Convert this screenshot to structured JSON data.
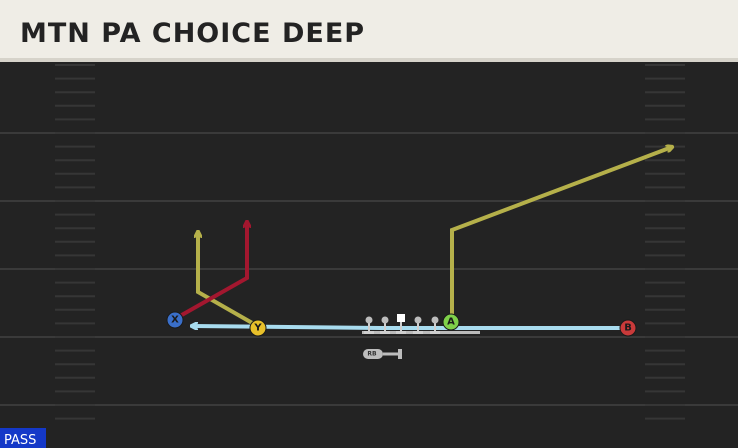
{
  "header": {
    "title": "MTN PA CHOICE DEEP"
  },
  "players": [
    {
      "label": "X"
    },
    {
      "label": "Y"
    },
    {
      "label": "A"
    },
    {
      "label": "B"
    },
    {
      "label": "RB"
    }
  ],
  "play_type": "PASS"
}
